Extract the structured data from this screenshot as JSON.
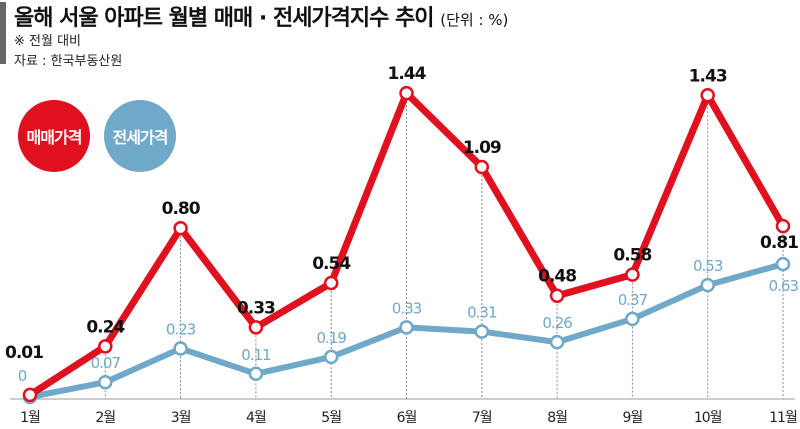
{
  "title": "올해 서울 아파트 월별 매매 · 전세가격지수 추이",
  "unit": "(단위 : %)",
  "note": "※ 전월 대비",
  "source": "자료 : 한국부동산원",
  "chart_data": {
    "type": "line",
    "title": "올해 서울 아파트 월별 매매 · 전세가격지수 추이",
    "categories": [
      "1월",
      "2월",
      "3월",
      "4월",
      "5월",
      "6월",
      "7월",
      "8월",
      "9월",
      "10월",
      "11월"
    ],
    "series": [
      {
        "name": "매매가격",
        "color": "#e1101f",
        "values": [
          0.01,
          0.24,
          0.8,
          0.33,
          0.54,
          1.44,
          1.09,
          0.48,
          0.58,
          1.43,
          0.81
        ]
      },
      {
        "name": "전세가격",
        "color": "#6fa8c8",
        "values": [
          0,
          0.07,
          0.23,
          0.11,
          0.19,
          0.33,
          0.31,
          0.26,
          0.37,
          0.53,
          0.63
        ]
      }
    ],
    "ylabel": "",
    "xlabel": "",
    "grid": false,
    "legend": "top-left"
  }
}
